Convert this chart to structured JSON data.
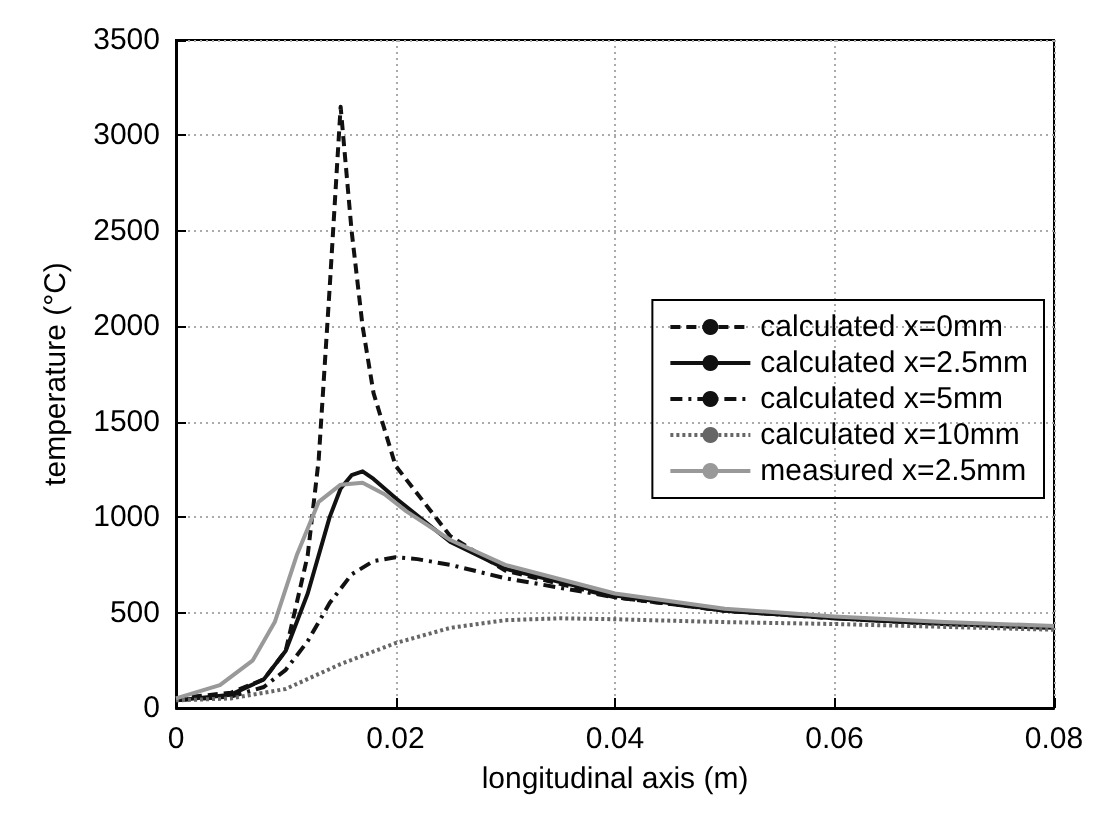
{
  "chart_data": {
    "type": "line",
    "xlabel": "longitudinal axis (m)",
    "ylabel": "temperature (°C)",
    "xlim": [
      0,
      0.08
    ],
    "xticks": [
      0,
      0.02,
      0.04,
      0.06,
      0.08
    ],
    "ylim": [
      0,
      3500
    ],
    "yticks": [
      0,
      500,
      1000,
      1500,
      2000,
      2500,
      3000,
      3500
    ],
    "grid": true,
    "legend": "right",
    "marker": "none",
    "series": [
      {
        "name": "calculated x=0mm",
        "color": "#111111",
        "line_style": "dashed",
        "x": [
          0,
          0.005,
          0.008,
          0.01,
          0.012,
          0.013,
          0.014,
          0.015,
          0.016,
          0.017,
          0.018,
          0.02,
          0.025,
          0.03,
          0.04,
          0.05,
          0.06,
          0.07,
          0.08
        ],
        "values": [
          50,
          80,
          150,
          300,
          800,
          1300,
          2200,
          3150,
          2500,
          2000,
          1650,
          1270,
          900,
          720,
          580,
          510,
          470,
          440,
          420
        ]
      },
      {
        "name": "calculated x=2.5mm",
        "color": "#111111",
        "line_style": "solid",
        "x": [
          0,
          0.005,
          0.008,
          0.01,
          0.012,
          0.014,
          0.015,
          0.016,
          0.017,
          0.018,
          0.02,
          0.025,
          0.03,
          0.04,
          0.05,
          0.06,
          0.07,
          0.08
        ],
        "values": [
          40,
          70,
          150,
          300,
          600,
          1000,
          1150,
          1220,
          1240,
          1200,
          1100,
          870,
          730,
          590,
          510,
          470,
          440,
          420
        ]
      },
      {
        "name": "calculated x=5mm",
        "color": "#111111",
        "line_style": "dashdot",
        "x": [
          0,
          0.005,
          0.008,
          0.01,
          0.012,
          0.014,
          0.016,
          0.018,
          0.02,
          0.022,
          0.025,
          0.03,
          0.04,
          0.05,
          0.06,
          0.07,
          0.08
        ],
        "values": [
          40,
          60,
          110,
          200,
          350,
          550,
          700,
          770,
          790,
          780,
          750,
          680,
          580,
          510,
          470,
          440,
          420
        ]
      },
      {
        "name": "calculated x=10mm",
        "color": "#666666",
        "line_style": "dotted",
        "x": [
          0,
          0.005,
          0.01,
          0.015,
          0.02,
          0.025,
          0.03,
          0.035,
          0.04,
          0.05,
          0.06,
          0.07,
          0.08
        ],
        "values": [
          40,
          50,
          100,
          230,
          340,
          420,
          460,
          470,
          465,
          450,
          440,
          425,
          410
        ]
      },
      {
        "name": "measured x=2.5mm",
        "color": "#999999",
        "line_style": "solid",
        "x": [
          0,
          0.004,
          0.007,
          0.009,
          0.011,
          0.013,
          0.015,
          0.017,
          0.019,
          0.021,
          0.025,
          0.03,
          0.04,
          0.05,
          0.06,
          0.07,
          0.08
        ],
        "values": [
          50,
          120,
          250,
          450,
          800,
          1080,
          1170,
          1180,
          1120,
          1030,
          880,
          750,
          600,
          520,
          480,
          450,
          430
        ]
      }
    ]
  }
}
